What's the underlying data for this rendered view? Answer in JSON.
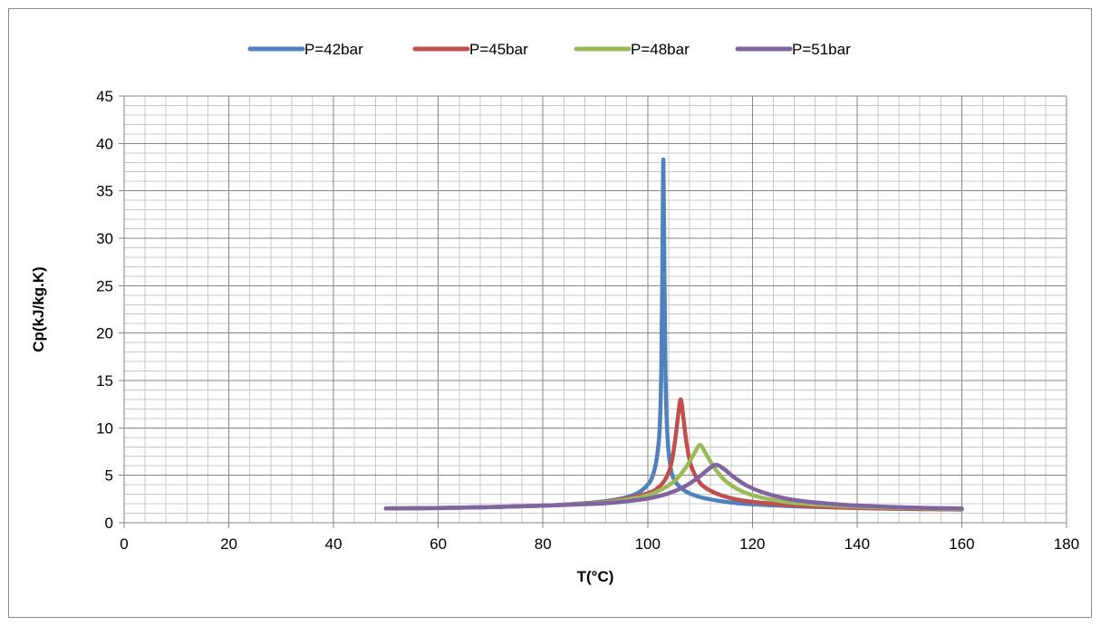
{
  "chart_data": {
    "type": "line",
    "title": "",
    "xlabel": "T(°C)",
    "ylabel": "Cp(kJ/kg.K)",
    "xlim": [
      0,
      180
    ],
    "ylim": [
      0,
      45
    ],
    "x_major_step": 20,
    "x_minor_step": 4,
    "y_major_step": 5,
    "y_minor_step": 1,
    "x_ticks": [
      "0",
      "20",
      "40",
      "60",
      "80",
      "100",
      "120",
      "140",
      "160",
      "180"
    ],
    "y_ticks": [
      "0",
      "5",
      "10",
      "15",
      "20",
      "25",
      "30",
      "35",
      "40",
      "45"
    ],
    "grid": true,
    "legend_position": "top",
    "series": [
      {
        "name": "P=42bar",
        "color": "#4f81bd",
        "points": [
          [
            50,
            1.5
          ],
          [
            60,
            1.55
          ],
          [
            70,
            1.65
          ],
          [
            80,
            1.8
          ],
          [
            85,
            1.95
          ],
          [
            90,
            2.15
          ],
          [
            95,
            2.55
          ],
          [
            98,
            3.1
          ],
          [
            100,
            4.0
          ],
          [
            101,
            5.0
          ],
          [
            101.8,
            7.0
          ],
          [
            102.3,
            10.0
          ],
          [
            102.6,
            16.0
          ],
          [
            102.8,
            26.0
          ],
          [
            103,
            38.3
          ],
          [
            103.2,
            26.0
          ],
          [
            103.4,
            16.0
          ],
          [
            103.7,
            10.0
          ],
          [
            104.2,
            6.5
          ],
          [
            105,
            4.6
          ],
          [
            107,
            3.4
          ],
          [
            110,
            2.7
          ],
          [
            115,
            2.2
          ],
          [
            120,
            1.95
          ],
          [
            130,
            1.7
          ],
          [
            140,
            1.55
          ],
          [
            150,
            1.45
          ],
          [
            160,
            1.4
          ]
        ]
      },
      {
        "name": "P=45bar",
        "color": "#c0504d",
        "points": [
          [
            50,
            1.5
          ],
          [
            60,
            1.55
          ],
          [
            70,
            1.65
          ],
          [
            80,
            1.8
          ],
          [
            90,
            2.1
          ],
          [
            95,
            2.45
          ],
          [
            100,
            3.1
          ],
          [
            102,
            3.7
          ],
          [
            103.5,
            4.7
          ],
          [
            104.5,
            6.2
          ],
          [
            105.2,
            8.5
          ],
          [
            105.8,
            11.2
          ],
          [
            106.3,
            13.0
          ],
          [
            106.8,
            11.2
          ],
          [
            107.4,
            8.5
          ],
          [
            108.2,
            6.2
          ],
          [
            109.5,
            4.6
          ],
          [
            111,
            3.7
          ],
          [
            114,
            2.9
          ],
          [
            118,
            2.35
          ],
          [
            125,
            1.95
          ],
          [
            135,
            1.65
          ],
          [
            145,
            1.5
          ],
          [
            160,
            1.4
          ]
        ]
      },
      {
        "name": "P=48bar",
        "color": "#9bbb59",
        "points": [
          [
            50,
            1.5
          ],
          [
            60,
            1.55
          ],
          [
            70,
            1.65
          ],
          [
            80,
            1.8
          ],
          [
            90,
            2.05
          ],
          [
            95,
            2.35
          ],
          [
            100,
            2.9
          ],
          [
            103,
            3.6
          ],
          [
            105.5,
            4.6
          ],
          [
            107.5,
            6.0
          ],
          [
            109,
            7.4
          ],
          [
            110,
            8.2
          ],
          [
            111,
            7.4
          ],
          [
            112.5,
            6.0
          ],
          [
            114.5,
            4.6
          ],
          [
            117,
            3.6
          ],
          [
            120,
            2.9
          ],
          [
            125,
            2.3
          ],
          [
            130,
            2.0
          ],
          [
            140,
            1.7
          ],
          [
            150,
            1.55
          ],
          [
            160,
            1.45
          ]
        ]
      },
      {
        "name": "P=51bar",
        "color": "#8064a2",
        "points": [
          [
            50,
            1.5
          ],
          [
            60,
            1.55
          ],
          [
            70,
            1.65
          ],
          [
            80,
            1.8
          ],
          [
            90,
            2.0
          ],
          [
            95,
            2.2
          ],
          [
            100,
            2.55
          ],
          [
            104,
            3.1
          ],
          [
            107,
            3.8
          ],
          [
            109.5,
            4.7
          ],
          [
            111.5,
            5.6
          ],
          [
            113,
            6.1
          ],
          [
            114.5,
            5.7
          ],
          [
            116.5,
            4.8
          ],
          [
            119,
            3.9
          ],
          [
            122,
            3.2
          ],
          [
            126,
            2.6
          ],
          [
            130,
            2.25
          ],
          [
            135,
            2.0
          ],
          [
            140,
            1.8
          ],
          [
            150,
            1.6
          ],
          [
            160,
            1.5
          ]
        ]
      }
    ]
  }
}
